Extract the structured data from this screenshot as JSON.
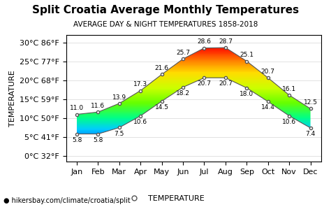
{
  "chart_data": {
    "type": "range_area",
    "title": "Split Croatia Average Monthly Temperatures",
    "subtitle": "AVERAGE DAY & NIGHT TEMPERATURES 1858-2018",
    "ylabel": "TEMPERATURE",
    "footer": "● hikersbay.com/climate/croatia/split",
    "categories": [
      "Jan",
      "Feb",
      "Mar",
      "Apr",
      "May",
      "Jun",
      "Jul",
      "Aug",
      "Sep",
      "Oct",
      "Nov",
      "Dec"
    ],
    "series": [
      {
        "name": "TEMPERATURE",
        "marker": "o",
        "high": [
          11.0,
          11.6,
          13.9,
          17.3,
          21.6,
          25.7,
          28.6,
          28.7,
          25.1,
          20.7,
          16.1,
          12.5
        ],
        "low": [
          5.8,
          5.8,
          7.5,
          10.6,
          14.5,
          18.2,
          20.7,
          20.7,
          18.0,
          14.4,
          10.6,
          7.4
        ]
      }
    ],
    "gradient": {
      "colors": [
        "#0000cc",
        "#0066ff",
        "#00ccff",
        "#00ff88",
        "#66ff00",
        "#ccff00",
        "#ffdd00",
        "#ff8800",
        "#ff2200",
        "#cc0000"
      ],
      "values": [
        0,
        4,
        7,
        10,
        14,
        18,
        22,
        25,
        28,
        31
      ]
    },
    "ylim": [
      -1.5,
      32
    ],
    "yticks": [
      {
        "value": 0,
        "label": "0°C 32°F"
      },
      {
        "value": 5,
        "label": "5°C 41°F"
      },
      {
        "value": 10,
        "label": "10°C 50°F"
      },
      {
        "value": 15,
        "label": "15°C 59°F"
      },
      {
        "value": 20,
        "label": "20°C 68°F"
      },
      {
        "value": 25,
        "label": "25°C 77°F"
      },
      {
        "value": 30,
        "label": "30°C 86°F"
      }
    ],
    "grid": true,
    "data_labels": true,
    "legend": "lower center"
  }
}
